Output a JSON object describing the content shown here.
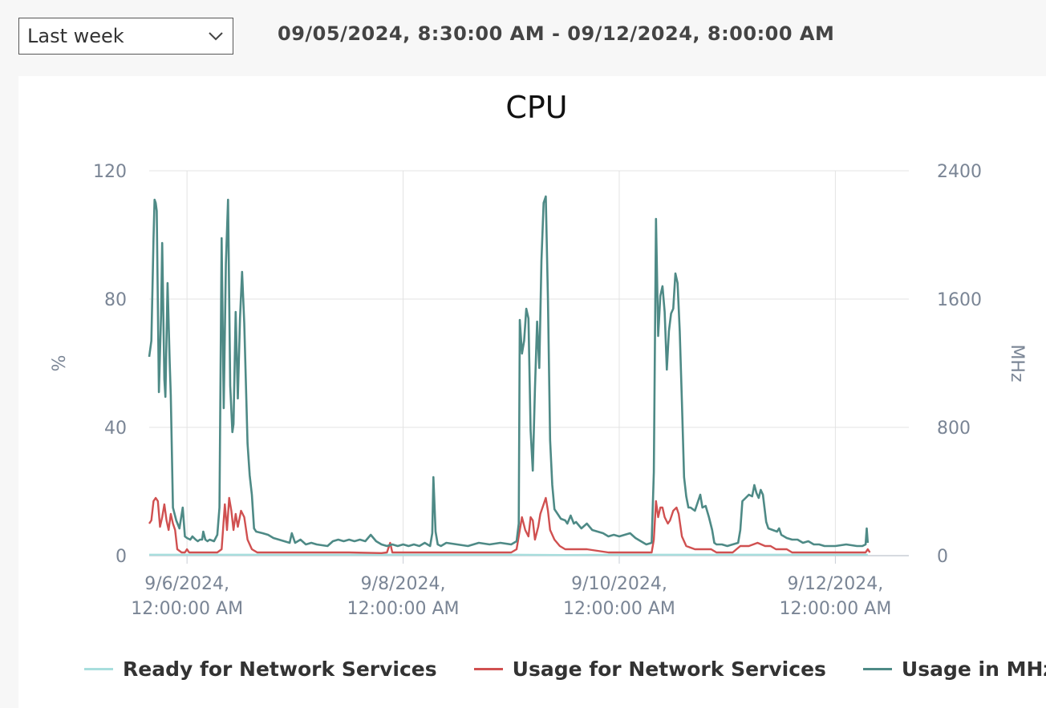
{
  "range_select": {
    "value": "Last week",
    "icon": "chevron-down-icon"
  },
  "time_range": "09/05/2024, 8:30:00 AM - 09/12/2024, 8:00:00 AM",
  "colors": {
    "ready": "#a8dedd",
    "usage_pct": "#d05050",
    "usage_mhz": "#4e8a86"
  },
  "chart_data": {
    "type": "line",
    "title": "CPU",
    "ylabel": "%",
    "y2label": "MHz",
    "ylim": [
      0,
      120
    ],
    "y2lim": [
      0,
      2400
    ],
    "yticks": [
      "0",
      "40",
      "80",
      "120"
    ],
    "y2ticks": [
      "0",
      "800",
      "1600",
      "2400"
    ],
    "xlim": [
      0.65,
      7.68
    ],
    "xticks": [
      {
        "x": 1.0,
        "line1": "9/6/2024,",
        "line2": "12:00:00 AM"
      },
      {
        "x": 3.0,
        "line1": "9/8/2024,",
        "line2": "12:00:00 AM"
      },
      {
        "x": 5.0,
        "line1": "9/10/2024,",
        "line2": "12:00:00 AM"
      },
      {
        "x": 7.0,
        "line1": "9/12/2024,",
        "line2": "12:00:00 AM"
      }
    ],
    "legend_position": "bottom",
    "grid": true,
    "series": [
      {
        "name": "Ready for Network Services",
        "axis": "left",
        "color": "#a8dedd",
        "points": [
          [
            0.65,
            0.3
          ],
          [
            2.0,
            0.3
          ],
          [
            4.0,
            0.3
          ],
          [
            4.5,
            0.2
          ],
          [
            5.0,
            0.3
          ],
          [
            6.0,
            0.3
          ],
          [
            7.0,
            0.3
          ],
          [
            7.3,
            0.3
          ]
        ]
      },
      {
        "name": "Usage for Network Services",
        "axis": "left",
        "color": "#d05050",
        "points": [
          [
            0.65,
            10
          ],
          [
            0.67,
            11
          ],
          [
            0.69,
            17
          ],
          [
            0.71,
            18
          ],
          [
            0.73,
            17
          ],
          [
            0.75,
            9
          ],
          [
            0.77,
            12
          ],
          [
            0.79,
            16
          ],
          [
            0.81,
            11
          ],
          [
            0.83,
            8
          ],
          [
            0.85,
            13
          ],
          [
            0.87,
            10
          ],
          [
            0.89,
            8
          ],
          [
            0.91,
            2
          ],
          [
            0.95,
            1
          ],
          [
            0.98,
            1
          ],
          [
            1.0,
            2
          ],
          [
            1.02,
            1
          ],
          [
            1.15,
            1
          ],
          [
            1.2,
            1
          ],
          [
            1.28,
            1
          ],
          [
            1.32,
            2
          ],
          [
            1.35,
            16
          ],
          [
            1.37,
            8
          ],
          [
            1.39,
            18
          ],
          [
            1.41,
            14
          ],
          [
            1.43,
            8
          ],
          [
            1.45,
            13
          ],
          [
            1.47,
            9
          ],
          [
            1.5,
            14
          ],
          [
            1.53,
            12
          ],
          [
            1.56,
            5
          ],
          [
            1.6,
            2
          ],
          [
            1.65,
            1
          ],
          [
            1.9,
            1
          ],
          [
            2.0,
            1
          ],
          [
            2.2,
            1
          ],
          [
            2.5,
            1
          ],
          [
            2.8,
            0.8
          ],
          [
            2.85,
            1
          ],
          [
            2.88,
            4
          ],
          [
            2.9,
            1
          ],
          [
            3.0,
            1
          ],
          [
            3.3,
            1
          ],
          [
            3.6,
            1
          ],
          [
            3.9,
            1
          ],
          [
            4.0,
            1
          ],
          [
            4.05,
            2
          ],
          [
            4.08,
            8
          ],
          [
            4.1,
            12
          ],
          [
            4.13,
            8
          ],
          [
            4.16,
            6
          ],
          [
            4.18,
            12
          ],
          [
            4.2,
            11
          ],
          [
            4.22,
            5
          ],
          [
            4.25,
            9
          ],
          [
            4.27,
            13
          ],
          [
            4.3,
            16
          ],
          [
            4.32,
            18
          ],
          [
            4.34,
            14
          ],
          [
            4.36,
            8
          ],
          [
            4.4,
            5
          ],
          [
            4.45,
            3
          ],
          [
            4.5,
            2
          ],
          [
            4.7,
            2
          ],
          [
            4.9,
            1
          ],
          [
            5.0,
            1
          ],
          [
            5.2,
            1
          ],
          [
            5.3,
            1
          ],
          [
            5.32,
            5
          ],
          [
            5.34,
            17
          ],
          [
            5.36,
            12
          ],
          [
            5.38,
            15
          ],
          [
            5.4,
            15
          ],
          [
            5.42,
            12
          ],
          [
            5.45,
            10
          ],
          [
            5.47,
            11
          ],
          [
            5.5,
            14
          ],
          [
            5.53,
            15
          ],
          [
            5.55,
            13
          ],
          [
            5.58,
            6
          ],
          [
            5.62,
            3
          ],
          [
            5.7,
            2
          ],
          [
            5.85,
            2
          ],
          [
            5.9,
            1
          ],
          [
            6.0,
            1
          ],
          [
            6.05,
            1
          ],
          [
            6.12,
            3
          ],
          [
            6.2,
            3
          ],
          [
            6.28,
            4
          ],
          [
            6.35,
            3
          ],
          [
            6.4,
            3
          ],
          [
            6.45,
            2
          ],
          [
            6.55,
            2
          ],
          [
            6.6,
            1
          ],
          [
            6.9,
            1
          ],
          [
            7.0,
            1
          ],
          [
            7.2,
            1
          ],
          [
            7.28,
            1
          ],
          [
            7.3,
            2
          ],
          [
            7.32,
            1
          ]
        ]
      },
      {
        "name": "Usage in MHz",
        "axis": "right",
        "color": "#4e8a86",
        "points": [
          [
            0.65,
            1240
          ],
          [
            0.67,
            1340
          ],
          [
            0.69,
            1980
          ],
          [
            0.7,
            2220
          ],
          [
            0.71,
            2200
          ],
          [
            0.72,
            2150
          ],
          [
            0.74,
            1020
          ],
          [
            0.76,
            1500
          ],
          [
            0.77,
            1950
          ],
          [
            0.79,
            1100
          ],
          [
            0.8,
            990
          ],
          [
            0.82,
            1700
          ],
          [
            0.84,
            1200
          ],
          [
            0.85,
            1000
          ],
          [
            0.87,
            300
          ],
          [
            0.9,
            220
          ],
          [
            0.93,
            170
          ],
          [
            0.96,
            300
          ],
          [
            0.98,
            120
          ],
          [
            1.0,
            110
          ],
          [
            1.03,
            100
          ],
          [
            1.05,
            120
          ],
          [
            1.08,
            100
          ],
          [
            1.1,
            90
          ],
          [
            1.12,
            100
          ],
          [
            1.14,
            100
          ],
          [
            1.15,
            150
          ],
          [
            1.17,
            100
          ],
          [
            1.19,
            90
          ],
          [
            1.21,
            100
          ],
          [
            1.25,
            90
          ],
          [
            1.28,
            130
          ],
          [
            1.3,
            300
          ],
          [
            1.32,
            1980
          ],
          [
            1.34,
            920
          ],
          [
            1.36,
            1820
          ],
          [
            1.38,
            2220
          ],
          [
            1.4,
            1060
          ],
          [
            1.42,
            770
          ],
          [
            1.43,
            820
          ],
          [
            1.45,
            1520
          ],
          [
            1.47,
            980
          ],
          [
            1.49,
            1480
          ],
          [
            1.51,
            1770
          ],
          [
            1.53,
            1450
          ],
          [
            1.56,
            700
          ],
          [
            1.58,
            500
          ],
          [
            1.6,
            380
          ],
          [
            1.62,
            170
          ],
          [
            1.64,
            150
          ],
          [
            1.7,
            140
          ],
          [
            1.75,
            130
          ],
          [
            1.8,
            110
          ],
          [
            1.85,
            100
          ],
          [
            1.9,
            90
          ],
          [
            1.95,
            80
          ],
          [
            1.97,
            140
          ],
          [
            2.0,
            80
          ],
          [
            2.05,
            100
          ],
          [
            2.1,
            70
          ],
          [
            2.15,
            80
          ],
          [
            2.2,
            70
          ],
          [
            2.3,
            60
          ],
          [
            2.35,
            90
          ],
          [
            2.4,
            100
          ],
          [
            2.45,
            90
          ],
          [
            2.5,
            100
          ],
          [
            2.55,
            90
          ],
          [
            2.6,
            100
          ],
          [
            2.65,
            90
          ],
          [
            2.7,
            130
          ],
          [
            2.75,
            90
          ],
          [
            2.8,
            70
          ],
          [
            2.85,
            60
          ],
          [
            2.9,
            70
          ],
          [
            2.95,
            60
          ],
          [
            3.0,
            70
          ],
          [
            3.05,
            60
          ],
          [
            3.1,
            70
          ],
          [
            3.15,
            60
          ],
          [
            3.2,
            80
          ],
          [
            3.25,
            60
          ],
          [
            3.27,
            140
          ],
          [
            3.28,
            490
          ],
          [
            3.3,
            150
          ],
          [
            3.32,
            70
          ],
          [
            3.35,
            60
          ],
          [
            3.4,
            80
          ],
          [
            3.5,
            70
          ],
          [
            3.6,
            60
          ],
          [
            3.7,
            80
          ],
          [
            3.8,
            70
          ],
          [
            3.9,
            80
          ],
          [
            4.0,
            70
          ],
          [
            4.05,
            90
          ],
          [
            4.07,
            200
          ],
          [
            4.08,
            1470
          ],
          [
            4.1,
            1260
          ],
          [
            4.12,
            1340
          ],
          [
            4.14,
            1540
          ],
          [
            4.16,
            1480
          ],
          [
            4.18,
            780
          ],
          [
            4.2,
            530
          ],
          [
            4.22,
            1040
          ],
          [
            4.24,
            1460
          ],
          [
            4.26,
            1170
          ],
          [
            4.28,
            1840
          ],
          [
            4.3,
            2200
          ],
          [
            4.32,
            2240
          ],
          [
            4.34,
            1600
          ],
          [
            4.36,
            720
          ],
          [
            4.38,
            440
          ],
          [
            4.4,
            290
          ],
          [
            4.43,
            260
          ],
          [
            4.46,
            230
          ],
          [
            4.5,
            220
          ],
          [
            4.52,
            200
          ],
          [
            4.55,
            250
          ],
          [
            4.58,
            200
          ],
          [
            4.6,
            210
          ],
          [
            4.65,
            170
          ],
          [
            4.7,
            200
          ],
          [
            4.75,
            160
          ],
          [
            4.8,
            150
          ],
          [
            4.85,
            140
          ],
          [
            4.9,
            120
          ],
          [
            4.95,
            130
          ],
          [
            5.0,
            120
          ],
          [
            5.05,
            130
          ],
          [
            5.1,
            140
          ],
          [
            5.15,
            110
          ],
          [
            5.2,
            90
          ],
          [
            5.25,
            70
          ],
          [
            5.3,
            80
          ],
          [
            5.32,
            520
          ],
          [
            5.34,
            2100
          ],
          [
            5.36,
            1370
          ],
          [
            5.38,
            1620
          ],
          [
            5.4,
            1680
          ],
          [
            5.42,
            1520
          ],
          [
            5.44,
            1160
          ],
          [
            5.46,
            1400
          ],
          [
            5.48,
            1510
          ],
          [
            5.5,
            1540
          ],
          [
            5.52,
            1760
          ],
          [
            5.54,
            1700
          ],
          [
            5.56,
            1400
          ],
          [
            5.58,
            960
          ],
          [
            5.6,
            490
          ],
          [
            5.62,
            370
          ],
          [
            5.64,
            300
          ],
          [
            5.66,
            300
          ],
          [
            5.7,
            280
          ],
          [
            5.73,
            340
          ],
          [
            5.75,
            380
          ],
          [
            5.77,
            300
          ],
          [
            5.8,
            310
          ],
          [
            5.83,
            240
          ],
          [
            5.86,
            160
          ],
          [
            5.88,
            80
          ],
          [
            5.9,
            70
          ],
          [
            5.95,
            70
          ],
          [
            6.0,
            60
          ],
          [
            6.05,
            70
          ],
          [
            6.1,
            80
          ],
          [
            6.12,
            160
          ],
          [
            6.14,
            340
          ],
          [
            6.17,
            360
          ],
          [
            6.2,
            380
          ],
          [
            6.23,
            370
          ],
          [
            6.25,
            440
          ],
          [
            6.27,
            390
          ],
          [
            6.29,
            360
          ],
          [
            6.31,
            410
          ],
          [
            6.33,
            380
          ],
          [
            6.36,
            210
          ],
          [
            6.38,
            170
          ],
          [
            6.42,
            160
          ],
          [
            6.46,
            150
          ],
          [
            6.48,
            170
          ],
          [
            6.5,
            130
          ],
          [
            6.55,
            110
          ],
          [
            6.6,
            100
          ],
          [
            6.65,
            100
          ],
          [
            6.7,
            80
          ],
          [
            6.75,
            90
          ],
          [
            6.8,
            70
          ],
          [
            6.85,
            70
          ],
          [
            6.9,
            60
          ],
          [
            6.95,
            60
          ],
          [
            7.0,
            60
          ],
          [
            7.1,
            70
          ],
          [
            7.2,
            60
          ],
          [
            7.25,
            60
          ],
          [
            7.28,
            70
          ],
          [
            7.29,
            170
          ],
          [
            7.3,
            80
          ]
        ]
      }
    ]
  }
}
